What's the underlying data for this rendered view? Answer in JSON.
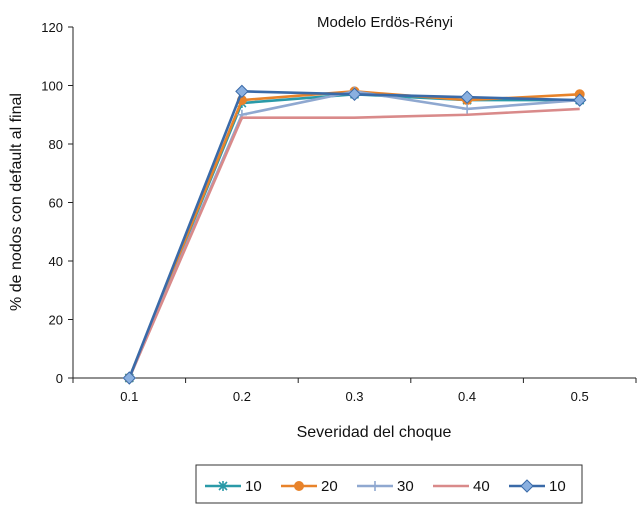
{
  "chart_data": {
    "type": "line",
    "title": "Modelo  Erdös-Rényi",
    "xlabel": "Severidad del choque",
    "ylabel": "% de nodos con default al final",
    "x": [
      0.1,
      0.2,
      0.3,
      0.4,
      0.5
    ],
    "x_tick_labels": [
      "0.1",
      "0.2",
      "0.3",
      "0.4",
      "0.5"
    ],
    "ylim": [
      0,
      120
    ],
    "y_ticks": [
      0,
      20,
      40,
      60,
      80,
      100,
      120
    ],
    "y_tick_labels": [
      "0",
      "20",
      "40",
      "60",
      "80",
      "100",
      "120"
    ],
    "grid": false,
    "legend_position": "bottom",
    "series": [
      {
        "name": "10",
        "color": "#2a9aa8",
        "marker": "x-cross",
        "values": [
          0,
          94,
          97,
          95,
          95
        ]
      },
      {
        "name": "20",
        "color": "#e8832a",
        "marker": "circle",
        "values": [
          0,
          95,
          98,
          95,
          97
        ]
      },
      {
        "name": "30",
        "color": "#8fa8d0",
        "marker": "plus",
        "values": [
          0,
          90,
          98,
          92,
          95
        ]
      },
      {
        "name": "40",
        "color": "#d98a8a",
        "marker": "none",
        "values": [
          0,
          89,
          89,
          90,
          92
        ]
      },
      {
        "name": "10",
        "color": "#3a6aa8",
        "marker": "diamond",
        "values": [
          0,
          98,
          97,
          96,
          95
        ]
      }
    ]
  }
}
